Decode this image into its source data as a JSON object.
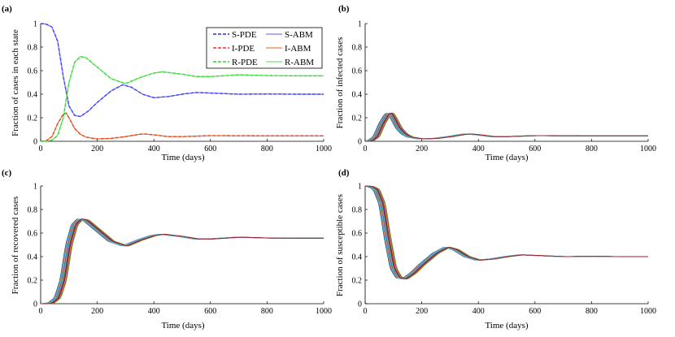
{
  "chart_data": [
    {
      "type": "line",
      "panel": "(a)",
      "xlabel": "Time (days)",
      "ylabel": "Fraction of cases in each state",
      "xlim": [
        0,
        1000
      ],
      "ylim": [
        0,
        1
      ],
      "xticks": [
        0,
        200,
        400,
        600,
        800,
        1000
      ],
      "yticks": [
        0,
        0.2,
        0.4,
        0.6,
        0.8,
        1
      ],
      "ytick_labels": [
        "0",
        "0.2",
        "0.4",
        "0.6",
        "0.8",
        "1"
      ],
      "legend": [
        "S-PDE",
        "S-ABM",
        "I-PDE",
        "I-ABM",
        "R-PDE",
        "R-ABM"
      ],
      "legend_position": "top-right",
      "series": [
        {
          "name": "S-PDE",
          "style": "dashed",
          "color": "#0000ff",
          "x": [
            0,
            20,
            40,
            60,
            80,
            100,
            120,
            140,
            170,
            200,
            250,
            290,
            320,
            360,
            400,
            450,
            500,
            550,
            600,
            700,
            800,
            900,
            1000
          ],
          "values": [
            1,
            0.995,
            0.97,
            0.85,
            0.55,
            0.3,
            0.22,
            0.21,
            0.26,
            0.33,
            0.43,
            0.48,
            0.46,
            0.4,
            0.37,
            0.38,
            0.4,
            0.415,
            0.41,
            0.4,
            0.402,
            0.4,
            0.4
          ]
        },
        {
          "name": "S-ABM",
          "style": "solid",
          "color": "#5a5aff",
          "x": [
            0,
            20,
            40,
            60,
            80,
            100,
            120,
            140,
            170,
            200,
            250,
            290,
            320,
            360,
            400,
            450,
            500,
            550,
            600,
            700,
            800,
            900,
            1000
          ],
          "values": [
            1,
            0.995,
            0.97,
            0.85,
            0.55,
            0.3,
            0.22,
            0.21,
            0.26,
            0.33,
            0.43,
            0.48,
            0.46,
            0.4,
            0.37,
            0.38,
            0.4,
            0.415,
            0.41,
            0.4,
            0.402,
            0.4,
            0.4
          ]
        },
        {
          "name": "I-PDE",
          "style": "dashed",
          "color": "#ff0000",
          "x": [
            0,
            20,
            40,
            60,
            80,
            90,
            100,
            120,
            140,
            160,
            200,
            250,
            300,
            350,
            370,
            400,
            450,
            500,
            600,
            700,
            800,
            900,
            1000
          ],
          "values": [
            0,
            0.005,
            0.04,
            0.15,
            0.23,
            0.24,
            0.2,
            0.11,
            0.06,
            0.035,
            0.02,
            0.025,
            0.04,
            0.06,
            0.062,
            0.055,
            0.04,
            0.04,
            0.048,
            0.047,
            0.046,
            0.046,
            0.046
          ]
        },
        {
          "name": "I-ABM",
          "style": "solid",
          "color": "#e06020",
          "x": [
            0,
            20,
            40,
            60,
            80,
            90,
            100,
            120,
            140,
            160,
            200,
            250,
            300,
            350,
            370,
            400,
            450,
            500,
            600,
            700,
            800,
            900,
            1000
          ],
          "values": [
            0,
            0.005,
            0.04,
            0.15,
            0.23,
            0.24,
            0.2,
            0.11,
            0.06,
            0.035,
            0.02,
            0.025,
            0.04,
            0.06,
            0.062,
            0.055,
            0.04,
            0.04,
            0.048,
            0.047,
            0.046,
            0.046,
            0.046
          ]
        },
        {
          "name": "R-PDE",
          "style": "dashed",
          "color": "#00d000",
          "x": [
            0,
            20,
            40,
            60,
            80,
            100,
            120,
            140,
            160,
            200,
            250,
            300,
            350,
            400,
            430,
            500,
            550,
            600,
            700,
            800,
            900,
            1000
          ],
          "values": [
            0,
            0,
            0.01,
            0.05,
            0.2,
            0.5,
            0.67,
            0.72,
            0.71,
            0.63,
            0.53,
            0.49,
            0.54,
            0.58,
            0.59,
            0.57,
            0.55,
            0.55,
            0.565,
            0.558,
            0.556,
            0.556
          ]
        },
        {
          "name": "R-ABM",
          "style": "solid",
          "color": "#50e050",
          "x": [
            0,
            20,
            40,
            60,
            80,
            100,
            120,
            140,
            160,
            200,
            250,
            300,
            350,
            400,
            430,
            500,
            550,
            600,
            700,
            800,
            900,
            1000
          ],
          "values": [
            0,
            0,
            0.01,
            0.05,
            0.2,
            0.5,
            0.67,
            0.72,
            0.71,
            0.63,
            0.53,
            0.49,
            0.54,
            0.58,
            0.59,
            0.57,
            0.55,
            0.55,
            0.565,
            0.558,
            0.556,
            0.556
          ]
        }
      ]
    },
    {
      "type": "line",
      "panel": "(b)",
      "xlabel": "Time (days)",
      "ylabel": "Fraction of infected cases",
      "xlim": [
        0,
        1000
      ],
      "ylim": [
        0,
        1
      ],
      "xticks": [
        0,
        200,
        400,
        600,
        800,
        1000
      ],
      "yticks": [
        0,
        0.2,
        0.4,
        0.6,
        0.8,
        1
      ],
      "ytick_labels": [
        "0",
        "0.2",
        "0.4",
        "0.6",
        "0.8",
        "1"
      ],
      "note": "many overlapping ABM realizations",
      "series": [
        {
          "name": "I-ABM realizations",
          "color": "#d97a2b",
          "x": [
            0,
            20,
            40,
            60,
            80,
            90,
            100,
            120,
            140,
            160,
            200,
            250,
            300,
            350,
            370,
            400,
            450,
            500,
            600,
            700,
            800,
            900,
            1000
          ],
          "values": [
            0,
            0.005,
            0.04,
            0.15,
            0.23,
            0.24,
            0.2,
            0.11,
            0.06,
            0.035,
            0.02,
            0.025,
            0.04,
            0.06,
            0.062,
            0.055,
            0.04,
            0.04,
            0.048,
            0.047,
            0.046,
            0.046,
            0.046
          ]
        }
      ]
    },
    {
      "type": "line",
      "panel": "(c)",
      "xlabel": "Time (days)",
      "ylabel": "Fraction of recovered cases",
      "xlim": [
        0,
        1000
      ],
      "ylim": [
        0,
        1
      ],
      "xticks": [
        0,
        200,
        400,
        600,
        800,
        1000
      ],
      "yticks": [
        0,
        0.2,
        0.4,
        0.6,
        0.8,
        1
      ],
      "ytick_labels": [
        "0",
        "0.2",
        "0.4",
        "0.6",
        "0.8",
        "1"
      ],
      "note": "many overlapping ABM realizations",
      "series": [
        {
          "name": "R-ABM realizations",
          "color": "#d97a2b",
          "x": [
            0,
            20,
            40,
            60,
            80,
            100,
            120,
            140,
            160,
            200,
            250,
            300,
            350,
            400,
            430,
            500,
            550,
            600,
            700,
            800,
            900,
            1000
          ],
          "values": [
            0,
            0,
            0.01,
            0.05,
            0.2,
            0.5,
            0.67,
            0.72,
            0.71,
            0.63,
            0.53,
            0.49,
            0.54,
            0.58,
            0.59,
            0.57,
            0.55,
            0.55,
            0.565,
            0.558,
            0.556,
            0.556
          ]
        }
      ]
    },
    {
      "type": "line",
      "panel": "(d)",
      "xlabel": "Time (days)",
      "ylabel": "Fraction of susceptible cases",
      "xlim": [
        0,
        1000
      ],
      "ylim": [
        0,
        1
      ],
      "xticks": [
        0,
        200,
        400,
        600,
        800,
        1000
      ],
      "yticks": [
        0,
        0.2,
        0.4,
        0.6,
        0.8,
        1
      ],
      "ytick_labels": [
        "0",
        "0.2",
        "0.4",
        "0.6",
        "0.8",
        "1"
      ],
      "note": "many overlapping ABM realizations",
      "series": [
        {
          "name": "S-ABM realizations",
          "color": "#d97a2b",
          "x": [
            0,
            20,
            40,
            60,
            80,
            100,
            120,
            140,
            170,
            200,
            250,
            290,
            320,
            360,
            400,
            450,
            500,
            550,
            600,
            700,
            800,
            900,
            1000
          ],
          "values": [
            1,
            0.995,
            0.97,
            0.85,
            0.55,
            0.3,
            0.22,
            0.21,
            0.26,
            0.33,
            0.43,
            0.48,
            0.46,
            0.4,
            0.37,
            0.38,
            0.4,
            0.415,
            0.41,
            0.4,
            0.402,
            0.4,
            0.4
          ]
        }
      ]
    }
  ],
  "realization_colors": [
    "#0072bd",
    "#d95319",
    "#edb120",
    "#7e2f8e",
    "#77ac30",
    "#4dbeee",
    "#a2142f"
  ]
}
